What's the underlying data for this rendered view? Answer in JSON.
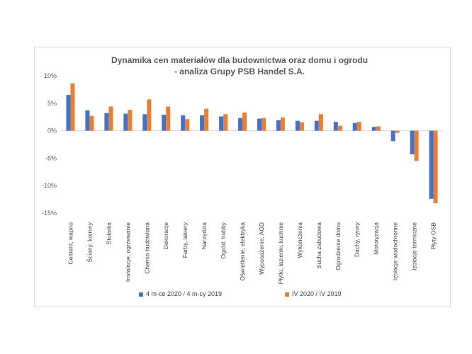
{
  "chart_data": {
    "type": "bar",
    "title": "Dynamika cen materiałów dla budownictwa oraz domu i ogrodu",
    "subtitle": "- analiza Grupy PSB Handel S.A.",
    "categories": [
      "Cement, wapno",
      "Ściany, kominy",
      "Stolarka",
      "Instalacje, ogrzewanie",
      "Chemia budowlana",
      "Dekoracje",
      "Farby, lakiery",
      "Narzędzia",
      "Ogród, hobby",
      "Oświetlenie, elektryka",
      "Wyposażenie, AGD",
      "Płytki, łazienki, kuchnie",
      "Wykończenia",
      "Sucha zabudowa",
      "Ogrodzenie domu",
      "Dachy, rynny",
      "Motoryzacja",
      "Izolacje wodochronne",
      "Izolacje termiczne",
      "Płyty OSB"
    ],
    "series": [
      {
        "name": "4 m-ce 2020 / 4 m-cy 2019",
        "color": "#4472C4",
        "values": [
          6.5,
          3.7,
          3.2,
          3.1,
          3.0,
          2.9,
          2.8,
          2.8,
          2.6,
          2.3,
          2.2,
          1.9,
          1.8,
          1.8,
          1.6,
          1.4,
          0.7,
          -1.9,
          -4.3,
          -12.4
        ]
      },
      {
        "name": "IV 2020 / IV 2019",
        "color": "#ED7D31",
        "values": [
          8.6,
          2.7,
          4.4,
          3.8,
          5.7,
          4.4,
          2.1,
          4.0,
          3.0,
          3.3,
          2.3,
          2.4,
          1.5,
          3.0,
          0.9,
          1.6,
          0.8,
          -0.4,
          -5.5,
          -13.2
        ]
      }
    ],
    "yticks": [
      "10%",
      "5%",
      "0%",
      "-5%",
      "-10%",
      "-15%"
    ],
    "ylim": [
      -15,
      10
    ],
    "legend_position": "bottom",
    "grid": false
  }
}
